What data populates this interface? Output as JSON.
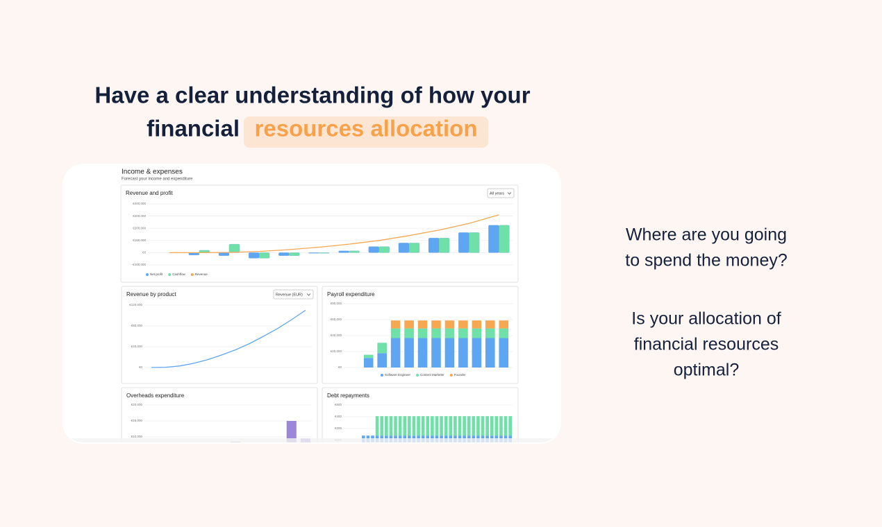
{
  "heading": {
    "line1": "Have a clear understanding of how your",
    "line2": "financial",
    "highlight": "resources allocation"
  },
  "dashboard": {
    "title": "Income & expenses",
    "subtitle": "Forecast your income and expenditure",
    "panels": [
      {
        "type": "combo",
        "title": "Revenue and profit",
        "dropdown": "All years",
        "ylim": [
          -100000,
          400000
        ],
        "yticks": [
          {
            "value": 400000,
            "label": "€400,000"
          },
          {
            "value": 300000,
            "label": "€300,000"
          },
          {
            "value": 200000,
            "label": "€200,000"
          },
          {
            "value": 100000,
            "label": "€100,000"
          },
          {
            "value": 0,
            "label": "€0"
          },
          {
            "value": -100000,
            "label": "-€100,000"
          }
        ],
        "series": [
          {
            "name": "Net profit",
            "kind": "bar",
            "color": "#5ea6f2",
            "values": [
              0,
              -20000,
              -25000,
              -45000,
              -25000,
              -5000,
              15000,
              50000,
              80000,
              120000,
              165000,
              225000
            ]
          },
          {
            "name": "Cashflow",
            "kind": "bar",
            "color": "#6fe0a8",
            "values": [
              0,
              20000,
              70000,
              -45000,
              -25000,
              -5000,
              15000,
              50000,
              80000,
              120000,
              165000,
              225000
            ]
          },
          {
            "name": "Revenue",
            "kind": "line",
            "color": "#f6a752",
            "values": [
              0,
              0,
              2000,
              10000,
              25000,
              45000,
              70000,
              100000,
              140000,
              185000,
              240000,
              310000
            ]
          }
        ],
        "legend": "bottom-left"
      },
      {
        "type": "line",
        "title": "Revenue by product",
        "dropdown": "Revenue (EUR)",
        "ylim": [
          0,
          120000
        ],
        "yticks": [
          {
            "value": 120000,
            "label": "€120,000"
          },
          {
            "value": 80000,
            "label": "€80,000"
          },
          {
            "value": 40000,
            "label": "€40,000"
          },
          {
            "value": 0,
            "label": "€0"
          }
        ],
        "series": [
          {
            "color": "#5ea6f2",
            "values": [
              0,
              500,
              3000,
              8000,
              15000,
              24000,
              34000,
              46000,
              60000,
              75000,
              92000,
              110000
            ]
          }
        ]
      },
      {
        "type": "stacked-bar",
        "title": "Payroll expenditure",
        "ylim": [
          0,
          80000
        ],
        "yticks": [
          {
            "value": 80000,
            "label": "€80,000"
          },
          {
            "value": 60000,
            "label": "€60,000"
          },
          {
            "value": 40000,
            "label": "€40,000"
          },
          {
            "value": 20000,
            "label": "€20,000"
          },
          {
            "value": 0,
            "label": "€0"
          }
        ],
        "series": [
          {
            "name": "Software Engineer",
            "color": "#5ea6f2",
            "values": [
              12000,
              18000,
              37000,
              37000,
              37000,
              37000,
              37000,
              37000,
              37000,
              37000,
              37000
            ]
          },
          {
            "name": "Content Marketer",
            "color": "#6fe0a8",
            "values": [
              4000,
              13000,
              12000,
              12000,
              12000,
              12000,
              12000,
              12000,
              12000,
              12000,
              12000
            ]
          },
          {
            "name": "Founder",
            "color": "#f6a752",
            "values": [
              0,
              0,
              10000,
              10000,
              10000,
              10000,
              10000,
              10000,
              10000,
              10000,
              10000
            ]
          }
        ],
        "legend": "bottom-center"
      },
      {
        "type": "stacked-bar",
        "title": "Overheads expenditure",
        "ylim": [
          0,
          20000
        ],
        "yticks": [
          {
            "value": 20000,
            "label": "€20,000"
          },
          {
            "value": 15000,
            "label": "€15,000"
          },
          {
            "value": 10000,
            "label": "€10,000"
          }
        ],
        "series": [
          {
            "color": "#9b86d8",
            "values": [
              0,
              0,
              0,
              0,
              0,
              0,
              8500,
              0,
              0,
              0,
              15000,
              9500
            ]
          }
        ]
      },
      {
        "type": "stacked-bar",
        "title": "Debt repayments",
        "ylim": [
          0,
          500
        ],
        "yticks": [
          {
            "value": 500,
            "label": "€500"
          },
          {
            "value": 400,
            "label": "€400"
          },
          {
            "value": 300,
            "label": "€300"
          },
          {
            "value": 200,
            "label": "€200"
          }
        ],
        "series": [
          {
            "color": "#5ea6f2",
            "values": [
              240,
              240,
              240,
              240,
              240,
              240,
              240,
              240,
              240,
              240,
              240,
              240,
              240,
              240,
              240,
              240,
              240,
              240,
              240,
              240,
              240,
              240,
              240,
              240,
              240,
              240,
              240,
              240,
              240,
              240,
              240,
              240,
              240
            ]
          },
          {
            "color": "#6fe0a8",
            "values": [
              0,
              0,
              0,
              165,
              165,
              165,
              165,
              165,
              165,
              165,
              165,
              165,
              165,
              165,
              165,
              165,
              165,
              165,
              165,
              165,
              165,
              165,
              165,
              165,
              165,
              165,
              165,
              165,
              165,
              165,
              165,
              165,
              165
            ]
          }
        ]
      }
    ]
  },
  "questions": [
    [
      "Where are you going",
      "to spend the money?"
    ],
    [
      "Is your allocation of",
      "financial resources",
      "optimal?"
    ]
  ]
}
